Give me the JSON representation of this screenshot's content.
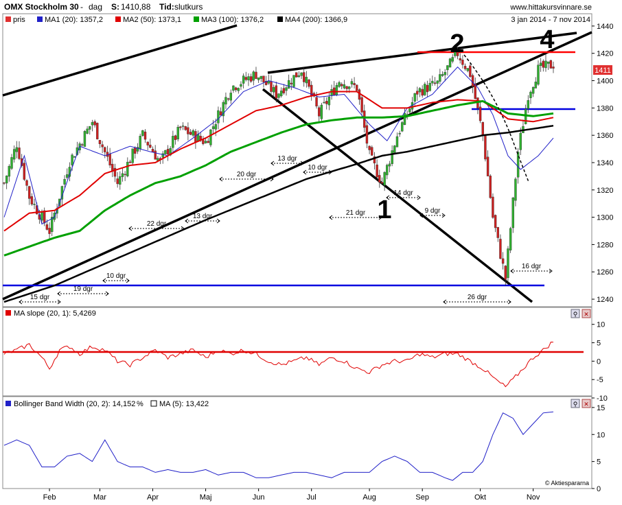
{
  "header": {
    "index_name": "OMX Stockholm 30",
    "period_sep": "-",
    "period": "dag",
    "close_label": "S:",
    "close_value": "1410,88",
    "time_label": "Tid:",
    "time_value": "slutkurs",
    "site": "www.hittakursvinnare.se",
    "date_range": "3 jan 2014 - 7 nov 2014"
  },
  "colors": {
    "price": "#e03030",
    "ma1": "#2020c8",
    "ma2": "#e00000",
    "ma3": "#00a000",
    "ma4": "#000000",
    "support": "#0000e0",
    "resistance": "#ff0000",
    "candle_up": "#30b030",
    "candle_down": "#cc2020"
  },
  "legend": [
    {
      "label": "pris",
      "color": "#e03030"
    },
    {
      "label": "MA1 (20): 1357,2",
      "color": "#2020c8"
    },
    {
      "label": "MA2 (50): 1373,1",
      "color": "#e00000"
    },
    {
      "label": "MA3 (100): 1376,2",
      "color": "#00a000"
    },
    {
      "label": "MA4 (200): 1366,9",
      "color": "#000000"
    }
  ],
  "price_badge": "1411",
  "panel2": {
    "title": "MA slope (20, 1): 5,4269"
  },
  "panel3": {
    "title1": "Bollinger Band Width (20, 2): 14,152",
    "unit": "%",
    "title2": "MA (5): 13,422"
  },
  "copyright": "© Aktiespararna",
  "chart_data": [
    {
      "type": "candlestick",
      "x_ticks": [
        "Feb",
        "Mar",
        "Apr",
        "Maj",
        "Jun",
        "Jul",
        "Aug",
        "Sep",
        "Okt",
        "Nov"
      ],
      "x_tick_idx": [
        18,
        38,
        59,
        80,
        101,
        122,
        145,
        166,
        189,
        210
      ],
      "ylim": [
        1235,
        1448
      ],
      "y_ticks": [
        1240,
        1260,
        1280,
        1300,
        1320,
        1340,
        1360,
        1380,
        1400,
        1420,
        1440
      ],
      "series": [
        {
          "name": "pris",
          "key_points": [
            [
              0,
              1325
            ],
            [
              5,
              1354
            ],
            [
              10,
              1315
            ],
            [
              18,
              1290
            ],
            [
              26,
              1341
            ],
            [
              35,
              1370
            ],
            [
              45,
              1325
            ],
            [
              55,
              1360
            ],
            [
              62,
              1340
            ],
            [
              70,
              1365
            ],
            [
              80,
              1355
            ],
            [
              90,
              1395
            ],
            [
              100,
              1405
            ],
            [
              108,
              1390
            ],
            [
              118,
              1408
            ],
            [
              125,
              1375
            ],
            [
              133,
              1400
            ],
            [
              140,
              1395
            ],
            [
              145,
              1345
            ],
            [
              150,
              1325
            ],
            [
              156,
              1360
            ],
            [
              164,
              1392
            ],
            [
              172,
              1398
            ],
            [
              180,
              1420
            ],
            [
              185,
              1405
            ],
            [
              190,
              1360
            ],
            [
              194,
              1300
            ],
            [
              199,
              1255
            ],
            [
              204,
              1348
            ],
            [
              208,
              1390
            ],
            [
              212,
              1408
            ],
            [
              218,
              1412
            ]
          ]
        },
        {
          "name": "MA1 (20)",
          "values_key": [
            [
              0,
              1300
            ],
            [
              8,
              1345
            ],
            [
              15,
              1295
            ],
            [
              20,
              1300
            ],
            [
              30,
              1352
            ],
            [
              40,
              1345
            ],
            [
              50,
              1352
            ],
            [
              58,
              1348
            ],
            [
              65,
              1345
            ],
            [
              75,
              1358
            ],
            [
              85,
              1372
            ],
            [
              95,
              1392
            ],
            [
              105,
              1400
            ],
            [
              115,
              1395
            ],
            [
              125,
              1388
            ],
            [
              135,
              1390
            ],
            [
              145,
              1368
            ],
            [
              152,
              1356
            ],
            [
              160,
              1380
            ],
            [
              170,
              1390
            ],
            [
              180,
              1410
            ],
            [
              188,
              1395
            ],
            [
              194,
              1375
            ],
            [
              200,
              1345
            ],
            [
              205,
              1335
            ],
            [
              212,
              1345
            ],
            [
              218,
              1358
            ]
          ]
        },
        {
          "name": "MA2 (50)",
          "values_key": [
            [
              0,
              1290
            ],
            [
              10,
              1303
            ],
            [
              20,
              1305
            ],
            [
              30,
              1316
            ],
            [
              40,
              1332
            ],
            [
              50,
              1338
            ],
            [
              60,
              1340
            ],
            [
              70,
              1350
            ],
            [
              80,
              1358
            ],
            [
              90,
              1368
            ],
            [
              100,
              1378
            ],
            [
              110,
              1382
            ],
            [
              120,
              1388
            ],
            [
              130,
              1392
            ],
            [
              140,
              1392
            ],
            [
              150,
              1380
            ],
            [
              160,
              1380
            ],
            [
              170,
              1384
            ],
            [
              180,
              1386
            ],
            [
              190,
              1385
            ],
            [
              200,
              1372
            ],
            [
              210,
              1370
            ],
            [
              218,
              1373
            ]
          ]
        },
        {
          "name": "MA3 (100)",
          "values_key": [
            [
              0,
              1272
            ],
            [
              20,
              1285
            ],
            [
              30,
              1290
            ],
            [
              40,
              1305
            ],
            [
              50,
              1316
            ],
            [
              60,
              1325
            ],
            [
              70,
              1330
            ],
            [
              80,
              1338
            ],
            [
              90,
              1348
            ],
            [
              100,
              1355
            ],
            [
              110,
              1362
            ],
            [
              120,
              1368
            ],
            [
              130,
              1371
            ],
            [
              140,
              1373
            ],
            [
              150,
              1373
            ],
            [
              160,
              1374
            ],
            [
              170,
              1378
            ],
            [
              180,
              1382
            ],
            [
              190,
              1385
            ],
            [
              200,
              1376
            ],
            [
              210,
              1374
            ],
            [
              218,
              1376
            ]
          ]
        },
        {
          "name": "MA4 (200)",
          "values_key": [
            [
              0,
              1238
            ],
            [
              20,
              1250
            ],
            [
              40,
              1266
            ],
            [
              60,
              1282
            ],
            [
              80,
              1298
            ],
            [
              100,
              1313
            ],
            [
              120,
              1328
            ],
            [
              140,
              1339
            ],
            [
              150,
              1345
            ],
            [
              160,
              1348
            ],
            [
              170,
              1352
            ],
            [
              180,
              1356
            ],
            [
              190,
              1360
            ],
            [
              200,
              1362
            ],
            [
              218,
              1367
            ]
          ]
        }
      ],
      "annotations": {
        "numbers": [
          "1",
          "2",
          "4"
        ],
        "interval_labels": [
          "15 dgr",
          "19 dgr",
          "10 dgr",
          "22 dgr",
          "13 dgr",
          "20 dgr",
          "13 dgr",
          "10 dgr",
          "21 dgr",
          "14 dgr",
          "9 dgr",
          "26 dgr",
          "16 dgr"
        ]
      }
    },
    {
      "type": "line",
      "title": "MA slope (20, 1): 5,4269",
      "ylim": [
        -10,
        12
      ],
      "y_ticks": [
        -10,
        -5,
        0,
        5,
        10
      ],
      "reference_line": 2.5,
      "key_points": [
        [
          0,
          2
        ],
        [
          5,
          3
        ],
        [
          10,
          4.5
        ],
        [
          15,
          1
        ],
        [
          18,
          -2
        ],
        [
          22,
          3
        ],
        [
          26,
          4
        ],
        [
          30,
          2
        ],
        [
          35,
          4
        ],
        [
          40,
          3
        ],
        [
          45,
          0
        ],
        [
          50,
          -1
        ],
        [
          55,
          1
        ],
        [
          60,
          3
        ],
        [
          65,
          1
        ],
        [
          70,
          2
        ],
        [
          75,
          3
        ],
        [
          80,
          1
        ],
        [
          85,
          3
        ],
        [
          90,
          2
        ],
        [
          95,
          3
        ],
        [
          100,
          2
        ],
        [
          105,
          0
        ],
        [
          110,
          -1
        ],
        [
          115,
          0
        ],
        [
          120,
          1
        ],
        [
          125,
          -1
        ],
        [
          130,
          1
        ],
        [
          135,
          0
        ],
        [
          140,
          -2
        ],
        [
          145,
          -3
        ],
        [
          150,
          -1
        ],
        [
          155,
          0
        ],
        [
          160,
          0
        ],
        [
          165,
          2
        ],
        [
          170,
          1
        ],
        [
          175,
          2
        ],
        [
          180,
          2
        ],
        [
          185,
          0
        ],
        [
          190,
          -2
        ],
        [
          195,
          -5
        ],
        [
          199,
          -7
        ],
        [
          202,
          -5
        ],
        [
          206,
          -2
        ],
        [
          210,
          1
        ],
        [
          214,
          3
        ],
        [
          218,
          5.4
        ]
      ]
    },
    {
      "type": "line",
      "title": "Bollinger Band Width (20, 2): 14,152",
      "ylim": [
        0,
        16
      ],
      "y_ticks": [
        0,
        5,
        10,
        15
      ],
      "key_points": [
        [
          0,
          8
        ],
        [
          5,
          9
        ],
        [
          10,
          8
        ],
        [
          15,
          4
        ],
        [
          20,
          4
        ],
        [
          25,
          6
        ],
        [
          30,
          6.5
        ],
        [
          35,
          5
        ],
        [
          40,
          9
        ],
        [
          45,
          5
        ],
        [
          50,
          4
        ],
        [
          55,
          4
        ],
        [
          60,
          3
        ],
        [
          65,
          3.5
        ],
        [
          70,
          3
        ],
        [
          75,
          3
        ],
        [
          80,
          3.5
        ],
        [
          85,
          2.5
        ],
        [
          90,
          3
        ],
        [
          95,
          3
        ],
        [
          100,
          2
        ],
        [
          105,
          2
        ],
        [
          110,
          2.5
        ],
        [
          115,
          3
        ],
        [
          120,
          3
        ],
        [
          125,
          2.5
        ],
        [
          130,
          2
        ],
        [
          135,
          3
        ],
        [
          140,
          3
        ],
        [
          145,
          3
        ],
        [
          150,
          5
        ],
        [
          155,
          6
        ],
        [
          160,
          5
        ],
        [
          165,
          3
        ],
        [
          170,
          3
        ],
        [
          175,
          2
        ],
        [
          178,
          1.5
        ],
        [
          182,
          3
        ],
        [
          186,
          3
        ],
        [
          190,
          5
        ],
        [
          194,
          10
        ],
        [
          198,
          14
        ],
        [
          202,
          13
        ],
        [
          206,
          10
        ],
        [
          210,
          12
        ],
        [
          214,
          14
        ],
        [
          218,
          14.2
        ]
      ]
    }
  ]
}
